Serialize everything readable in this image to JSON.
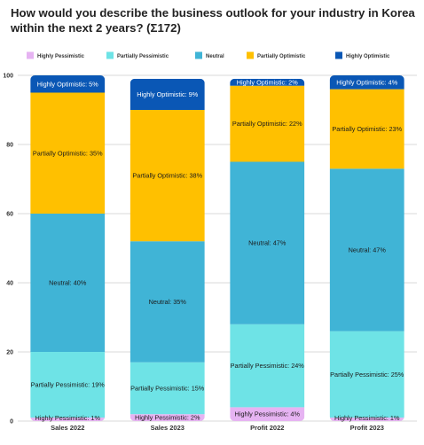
{
  "title": {
    "line1": "How would you describe the business outlook for your industry in Korea",
    "line2": "within the next 2 years? (Σ172)"
  },
  "chart_data": {
    "type": "bar",
    "stacked": true,
    "categories": [
      "Sales 2022",
      "Sales 2023",
      "Profit 2022",
      "Profit 2023"
    ],
    "series": [
      {
        "name": "Highly Pessimistic",
        "color": "#e6b3f2",
        "values": [
          1,
          2,
          4,
          1
        ]
      },
      {
        "name": "Partially Pessimistic",
        "color": "#6ee3e6",
        "values": [
          19,
          15,
          24,
          25
        ]
      },
      {
        "name": "Neutral",
        "color": "#40b4d6",
        "values": [
          40,
          35,
          47,
          47
        ]
      },
      {
        "name": "Partially Optimistic",
        "color": "#ffc000",
        "values": [
          35,
          38,
          22,
          23
        ]
      },
      {
        "name": "Highly Optimistic",
        "color": "#0a57b5",
        "values": [
          5,
          9,
          2,
          4
        ]
      }
    ],
    "ylim": [
      0,
      100
    ],
    "yticks": [
      "0",
      "20",
      "40",
      "60",
      "80",
      "100"
    ],
    "grid": true,
    "legend_position": "top"
  }
}
